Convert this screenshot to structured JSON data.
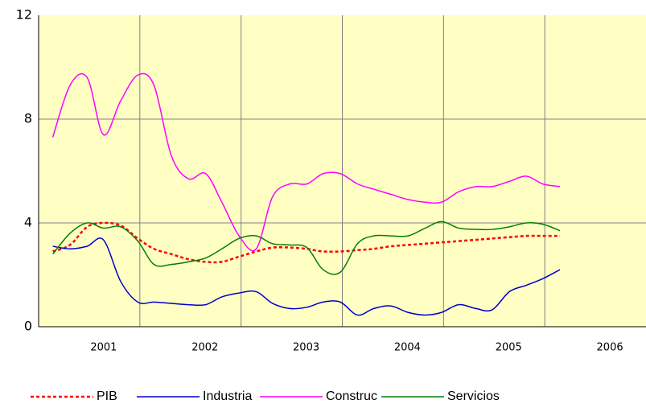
{
  "chart_data": {
    "type": "line",
    "categories": [
      "2001",
      "2002",
      "2003",
      "2004",
      "2005",
      "2006"
    ],
    "xlim": [
      2001,
      2007
    ],
    "x": [
      2001.14,
      2001.31,
      2001.48,
      2001.64,
      2001.81,
      2001.98,
      2002.14,
      2002.31,
      2002.48,
      2002.65,
      2002.81,
      2002.98,
      2003.15,
      2003.31,
      2003.48,
      2003.65,
      2003.81,
      2003.98,
      2004.15,
      2004.31,
      2004.48,
      2004.65,
      2004.82,
      2004.98,
      2005.15,
      2005.32,
      2005.48,
      2005.65,
      2005.82,
      2005.98,
      2006.15
    ],
    "ylim": [
      0,
      12
    ],
    "yticks": [
      0,
      4,
      8,
      12
    ],
    "grid": true,
    "legend": "bottom",
    "series": [
      {
        "name": "PIB",
        "color": "#ff0000",
        "dashed": true,
        "values": [
          2.9,
          3.15,
          3.85,
          4.0,
          3.9,
          3.4,
          3.0,
          2.8,
          2.6,
          2.5,
          2.5,
          2.7,
          2.9,
          3.05,
          3.05,
          3.0,
          2.9,
          2.9,
          2.95,
          3.0,
          3.1,
          3.15,
          3.2,
          3.25,
          3.3,
          3.35,
          3.4,
          3.45,
          3.5,
          3.5,
          3.5
        ]
      },
      {
        "name": "Industria",
        "color": "#0000cc",
        "values": [
          3.1,
          3.0,
          3.1,
          3.35,
          1.75,
          0.95,
          0.95,
          0.9,
          0.85,
          0.85,
          1.15,
          1.3,
          1.35,
          0.9,
          0.7,
          0.75,
          0.95,
          0.95,
          0.45,
          0.7,
          0.8,
          0.55,
          0.45,
          0.55,
          0.85,
          0.7,
          0.65,
          1.35,
          1.6,
          1.85,
          2.2
        ]
      },
      {
        "name": "Construc",
        "color": "#ff00ff",
        "values": [
          7.3,
          9.3,
          9.6,
          7.4,
          8.7,
          9.7,
          9.3,
          6.6,
          5.7,
          5.9,
          4.8,
          3.5,
          3.0,
          5.0,
          5.5,
          5.5,
          5.9,
          5.9,
          5.5,
          5.3,
          5.1,
          4.9,
          4.8,
          4.8,
          5.2,
          5.4,
          5.4,
          5.6,
          5.8,
          5.5,
          5.4
        ]
      },
      {
        "name": "Servicios",
        "color": "#008000",
        "values": [
          2.8,
          3.6,
          4.0,
          3.8,
          3.85,
          3.3,
          2.4,
          2.4,
          2.5,
          2.65,
          3.0,
          3.4,
          3.5,
          3.2,
          3.15,
          3.05,
          2.2,
          2.1,
          3.2,
          3.5,
          3.5,
          3.5,
          3.8,
          4.05,
          3.8,
          3.75,
          3.75,
          3.85,
          4.0,
          3.95,
          3.7
        ]
      }
    ]
  }
}
